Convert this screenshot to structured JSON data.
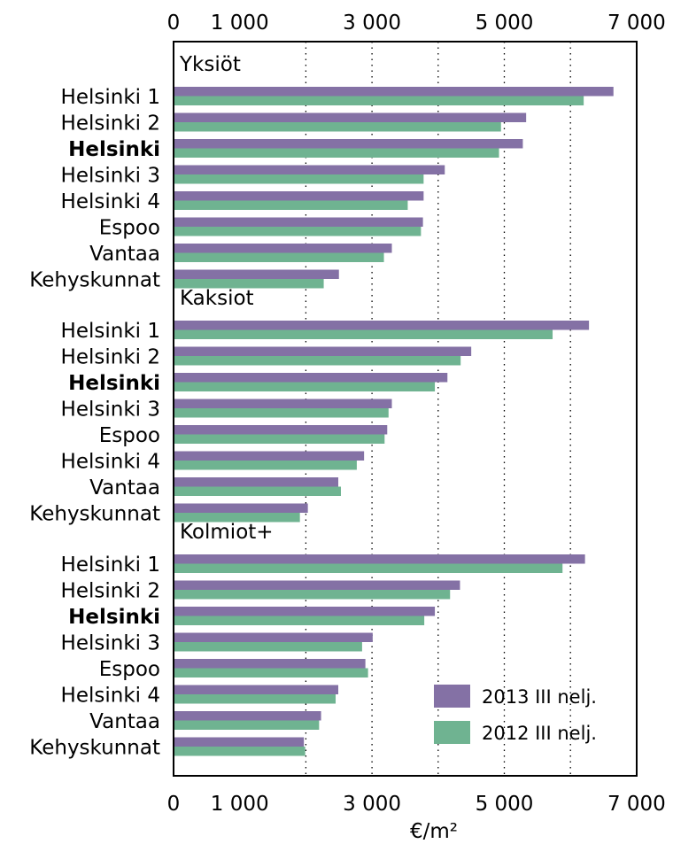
{
  "chart_data": {
    "type": "bar",
    "orientation": "horizontal",
    "xlabel": "€/m²",
    "xlim": [
      0,
      7000
    ],
    "ticks": [
      {
        "value": 0,
        "label": "0"
      },
      {
        "value": 1000,
        "label": "1 000"
      },
      {
        "value": 3000,
        "label": "3 000"
      },
      {
        "value": 5000,
        "label": "5 000"
      },
      {
        "value": 7000,
        "label": "7 000"
      }
    ],
    "grid_at": [
      2000,
      3000,
      4000,
      5000,
      6000
    ],
    "legend_position": "bottom-right",
    "series": [
      {
        "name": "2013 III nelj.",
        "color": "#8471a5"
      },
      {
        "name": "2012 III nelj.",
        "color": "#6fb391"
      }
    ],
    "groups": [
      {
        "name": "Yksiöt",
        "rows": [
          {
            "label": "Helsinki 1",
            "bold": false,
            "values": [
              6650,
              6200
            ]
          },
          {
            "label": "Helsinki 2",
            "bold": false,
            "values": [
              5330,
              4950
            ]
          },
          {
            "label": "Helsinki",
            "bold": true,
            "values": [
              5280,
              4920
            ]
          },
          {
            "label": "Helsinki 3",
            "bold": false,
            "values": [
              4100,
              3780
            ]
          },
          {
            "label": "Helsinki 4",
            "bold": false,
            "values": [
              3780,
              3540
            ]
          },
          {
            "label": "Espoo",
            "bold": false,
            "values": [
              3770,
              3740
            ]
          },
          {
            "label": "Vantaa",
            "bold": false,
            "values": [
              3300,
              3180
            ]
          },
          {
            "label": "Kehyskunnat",
            "bold": false,
            "values": [
              2500,
              2270
            ]
          }
        ]
      },
      {
        "name": "Kaksiot",
        "rows": [
          {
            "label": "Helsinki 1",
            "bold": false,
            "values": [
              6280,
              5730
            ]
          },
          {
            "label": "Helsinki 2",
            "bold": false,
            "values": [
              4500,
              4340
            ]
          },
          {
            "label": "Helsinki",
            "bold": true,
            "values": [
              4140,
              3950
            ]
          },
          {
            "label": "Helsinki 3",
            "bold": false,
            "values": [
              3300,
              3250
            ]
          },
          {
            "label": "Espoo",
            "bold": false,
            "values": [
              3230,
              3190
            ]
          },
          {
            "label": "Helsinki 4",
            "bold": false,
            "values": [
              2880,
              2770
            ]
          },
          {
            "label": "Vantaa",
            "bold": false,
            "values": [
              2490,
              2530
            ]
          },
          {
            "label": "Kehyskunnat",
            "bold": false,
            "values": [
              2030,
              1910
            ]
          }
        ]
      },
      {
        "name": "Kolmiot+",
        "rows": [
          {
            "label": "Helsinki 1",
            "bold": false,
            "values": [
              6220,
              5880
            ]
          },
          {
            "label": "Helsinki 2",
            "bold": false,
            "values": [
              4330,
              4180
            ]
          },
          {
            "label": "Helsinki",
            "bold": true,
            "values": [
              3950,
              3790
            ]
          },
          {
            "label": "Helsinki 3",
            "bold": false,
            "values": [
              3010,
              2850
            ]
          },
          {
            "label": "Espoo",
            "bold": false,
            "values": [
              2900,
              2940
            ]
          },
          {
            "label": "Helsinki 4",
            "bold": false,
            "values": [
              2490,
              2450
            ]
          },
          {
            "label": "Vantaa",
            "bold": false,
            "values": [
              2230,
              2200
            ]
          },
          {
            "label": "Kehyskunnat",
            "bold": false,
            "values": [
              1970,
              1990
            ]
          }
        ]
      }
    ]
  }
}
